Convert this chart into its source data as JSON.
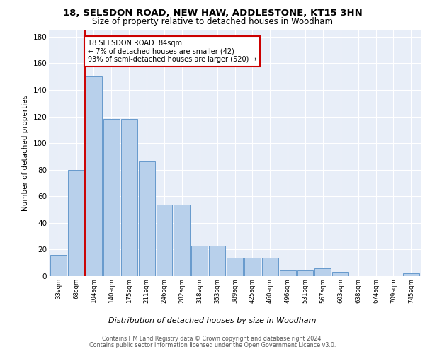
{
  "title1": "18, SELSDON ROAD, NEW HAW, ADDLESTONE, KT15 3HN",
  "title2": "Size of property relative to detached houses in Woodham",
  "xlabel": "Distribution of detached houses by size in Woodham",
  "ylabel": "Number of detached properties",
  "bar_labels": [
    "33sqm",
    "68sqm",
    "104sqm",
    "140sqm",
    "175sqm",
    "211sqm",
    "246sqm",
    "282sqm",
    "318sqm",
    "353sqm",
    "389sqm",
    "425sqm",
    "460sqm",
    "496sqm",
    "531sqm",
    "567sqm",
    "603sqm",
    "638sqm",
    "674sqm",
    "709sqm",
    "745sqm"
  ],
  "bar_values": [
    16,
    80,
    150,
    118,
    118,
    86,
    54,
    54,
    23,
    23,
    14,
    14,
    14,
    4,
    4,
    6,
    3,
    0,
    0,
    0,
    2
  ],
  "bar_color": "#b8d0eb",
  "bar_edge_color": "#6699cc",
  "vline_x": 1.5,
  "vline_color": "#cc0000",
  "annotation_text": "18 SELSDON ROAD: 84sqm\n← 7% of detached houses are smaller (42)\n93% of semi-detached houses are larger (520) →",
  "annotation_box_color": "white",
  "annotation_box_edge": "#cc0000",
  "ylim": [
    0,
    185
  ],
  "yticks": [
    0,
    20,
    40,
    60,
    80,
    100,
    120,
    140,
    160,
    180
  ],
  "footer1": "Contains HM Land Registry data © Crown copyright and database right 2024.",
  "footer2": "Contains public sector information licensed under the Open Government Licence v3.0.",
  "plot_bg_color": "#e8eef8"
}
